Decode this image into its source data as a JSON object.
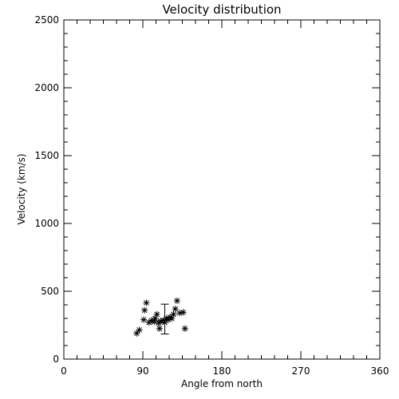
{
  "chart_data": {
    "type": "scatter",
    "title": "Velocity distribution",
    "xlabel": "Angle from north",
    "ylabel": "Velocity (km/s)",
    "xlim": [
      0,
      360
    ],
    "ylim": [
      0,
      2500
    ],
    "x_ticks": [
      "0",
      "90",
      "180",
      "270",
      "360"
    ],
    "y_ticks": [
      "0",
      "500",
      "1000",
      "1500",
      "2000",
      "2500"
    ],
    "grid": false,
    "marker": "asterisk",
    "points": [
      {
        "x": 83,
        "y": 190
      },
      {
        "x": 86,
        "y": 215
      },
      {
        "x": 91,
        "y": 290
      },
      {
        "x": 92,
        "y": 360
      },
      {
        "x": 94,
        "y": 415
      },
      {
        "x": 97,
        "y": 270
      },
      {
        "x": 100,
        "y": 285
      },
      {
        "x": 103,
        "y": 275
      },
      {
        "x": 104,
        "y": 300
      },
      {
        "x": 106,
        "y": 330
      },
      {
        "x": 108,
        "y": 265
      },
      {
        "x": 109,
        "y": 225
      },
      {
        "x": 110,
        "y": 280
      },
      {
        "x": 113,
        "y": 285
      },
      {
        "x": 115,
        "y": 270
      },
      {
        "x": 117,
        "y": 300
      },
      {
        "x": 119,
        "y": 290
      },
      {
        "x": 121,
        "y": 310
      },
      {
        "x": 123,
        "y": 300
      },
      {
        "x": 125,
        "y": 330
      },
      {
        "x": 127,
        "y": 370
      },
      {
        "x": 129,
        "y": 430
      },
      {
        "x": 132,
        "y": 340
      },
      {
        "x": 136,
        "y": 345
      },
      {
        "x": 138,
        "y": 225
      }
    ],
    "errorbar": {
      "x": 115,
      "y": 295,
      "ymin": 185,
      "ymax": 405
    }
  }
}
